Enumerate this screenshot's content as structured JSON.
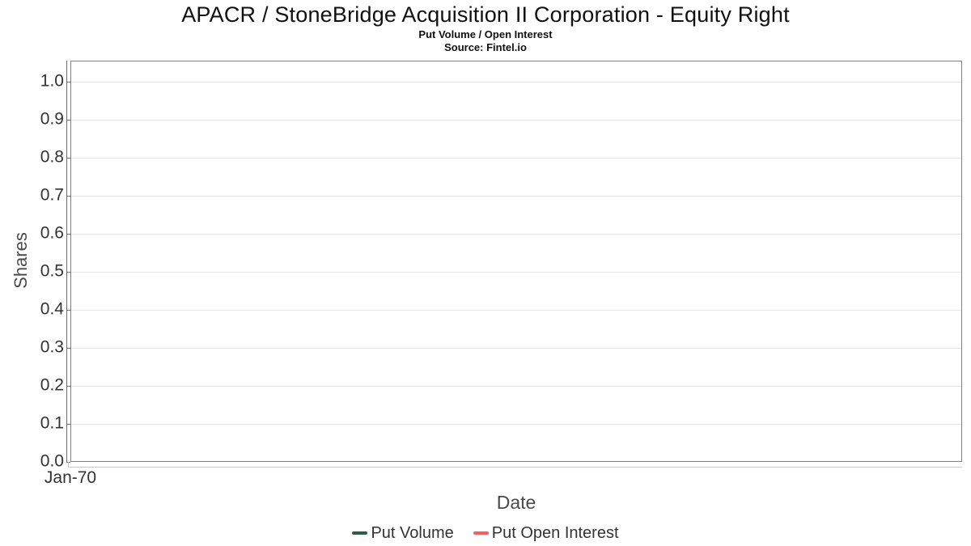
{
  "header": {
    "title": "APACR / StoneBridge Acquisition II Corporation - Equity Right",
    "subtitle": "Put Volume / Open Interest",
    "source": "Source: Fintel.io"
  },
  "chart_data": {
    "type": "line",
    "title": "APACR / StoneBridge Acquisition II Corporation - Equity Right",
    "subtitle": "Put Volume / Open Interest",
    "source": "Source: Fintel.io",
    "xlabel": "Date",
    "ylabel": "Shares",
    "x_tick_labels": [
      "Jan-70"
    ],
    "y_tick_values": [
      0.0,
      0.1,
      0.2,
      0.3,
      0.4,
      0.5,
      0.6,
      0.7,
      0.8,
      0.9,
      1.0
    ],
    "y_tick_labels": [
      "0.0",
      "0.1",
      "0.2",
      "0.3",
      "0.4",
      "0.5",
      "0.6",
      "0.7",
      "0.8",
      "0.9",
      "1.0"
    ],
    "ylim": [
      0.0,
      1.055
    ],
    "grid": true,
    "legend_position": "bottom-center",
    "series": [
      {
        "name": "Put Volume",
        "color": "#2e5e41",
        "points": []
      },
      {
        "name": "Put Open Interest",
        "color": "#fa5e5c",
        "points": []
      }
    ],
    "plot_area_empty": true
  },
  "colors": {
    "plot_border": "#808080",
    "gridline": "#e5e5e5",
    "y_axis_line": "#6f6f6f",
    "x_axis_line": "#c8c8c8",
    "tick_label": "#333333",
    "axis_title": "#4a4a4a",
    "title_text": "#111111"
  }
}
